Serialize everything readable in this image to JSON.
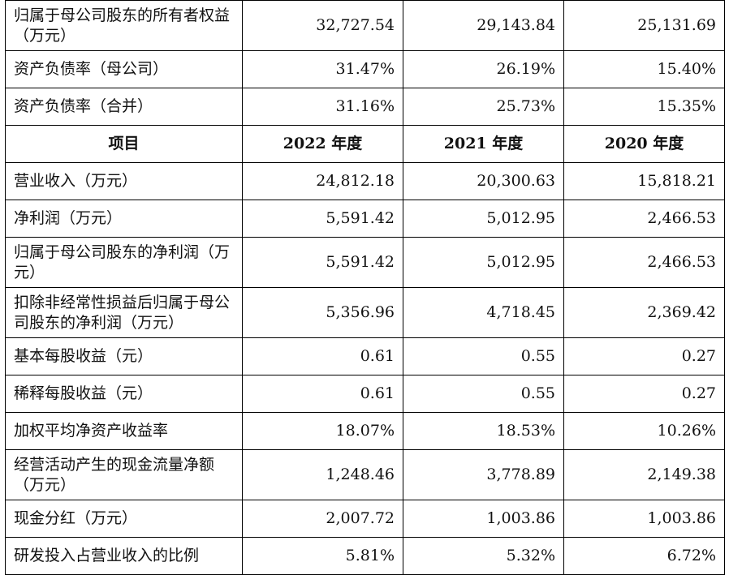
{
  "top_rows": [
    {
      "label": "归属于母公司股东的所有者权益（万元）",
      "v2022": "32,727.54",
      "v2021": "29,143.84",
      "v2020": "25,131.69"
    },
    {
      "label": "资产负债率（母公司）",
      "v2022": "31.47%",
      "v2021": "26.19%",
      "v2020": "15.40%"
    },
    {
      "label": "资产负债率（合并）",
      "v2022": "31.16%",
      "v2021": "25.73%",
      "v2020": "15.35%"
    }
  ],
  "header": {
    "item": "项目",
    "y2022": "2022 年度",
    "y2021": "2021 年度",
    "y2020": "2020 年度"
  },
  "rows": [
    {
      "label": "营业收入（万元）",
      "v2022": "24,812.18",
      "v2021": "20,300.63",
      "v2020": "15,818.21"
    },
    {
      "label": "净利润（万元）",
      "v2022": "5,591.42",
      "v2021": "5,012.95",
      "v2020": "2,466.53"
    },
    {
      "label": "归属于母公司股东的净利润（万元）",
      "v2022": "5,591.42",
      "v2021": "5,012.95",
      "v2020": "2,466.53"
    },
    {
      "label": "扣除非经常性损益后归属于母公司股东的净利润（万元）",
      "v2022": "5,356.96",
      "v2021": "4,718.45",
      "v2020": "2,369.42"
    },
    {
      "label": "基本每股收益（元）",
      "v2022": "0.61",
      "v2021": "0.55",
      "v2020": "0.27"
    },
    {
      "label": "稀释每股收益（元）",
      "v2022": "0.61",
      "v2021": "0.55",
      "v2020": "0.27"
    },
    {
      "label": "加权平均净资产收益率",
      "v2022": "18.07%",
      "v2021": "18.53%",
      "v2020": "10.26%"
    },
    {
      "label": "经营活动产生的现金流量净额（万元）",
      "v2022": "1,248.46",
      "v2021": "3,778.89",
      "v2020": "2,149.38"
    },
    {
      "label": "现金分红（万元）",
      "v2022": "2,007.72",
      "v2021": "1,003.86",
      "v2020": "1,003.86"
    },
    {
      "label": "研发投入占营业收入的比例",
      "v2022": "5.81%",
      "v2021": "5.32%",
      "v2020": "6.72%"
    }
  ]
}
